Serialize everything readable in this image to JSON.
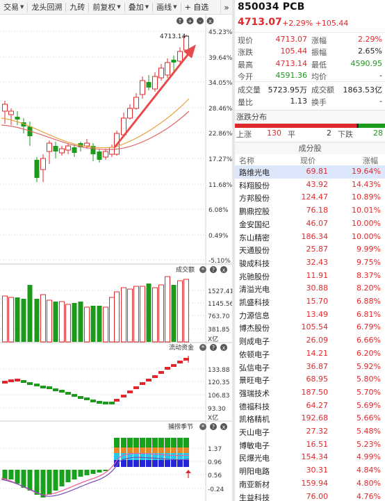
{
  "toolbar": {
    "items": [
      "交易",
      "龙头回溯",
      "九砖",
      "前复权",
      "叠加",
      "画线",
      "+ 自选"
    ],
    "more": "»"
  },
  "main_chart": {
    "y_labels": [
      "45.23%",
      "39.64%",
      "34.05%",
      "28.46%",
      "22.86%",
      "17.27%",
      "11.68%",
      "6.08%",
      "0.49%",
      "-5.10%"
    ],
    "max_price_label": "4713.14"
  },
  "volume_pane": {
    "title": "成交额",
    "y_labels": [
      "1527.41",
      "1145.56",
      "763.70",
      "381.85"
    ],
    "unit": "X亿"
  },
  "flow_pane": {
    "title": "流动资金",
    "y_labels": [
      "133.88",
      "120.35",
      "106.83",
      "93.30"
    ],
    "unit": "X亿"
  },
  "season_pane": {
    "title": "捕捞季节",
    "y_labels": [
      "1.37",
      "0.96",
      "0.56",
      "-0.24"
    ]
  },
  "quote": {
    "code_name": "850034 PCB",
    "price": "4713.07",
    "change": "+2.29% +105.44",
    "rows": [
      [
        {
          "label": "现价",
          "value": "4713.07",
          "color": "red"
        },
        {
          "label": "涨幅",
          "value": "2.29%",
          "color": "red"
        }
      ],
      [
        {
          "label": "涨跌",
          "value": "105.44",
          "color": "red"
        },
        {
          "label": "振幅",
          "value": "2.65%",
          "color": "dark"
        }
      ],
      [
        {
          "label": "最高",
          "value": "4713.14",
          "color": "red"
        },
        {
          "label": "最低",
          "value": "4590.95",
          "color": "green"
        }
      ],
      [
        {
          "label": "今开",
          "value": "4591.36",
          "color": "green"
        },
        {
          "label": "均价",
          "value": "-",
          "color": "dark"
        }
      ],
      [
        {
          "label": "成交量",
          "value": "5723.95万",
          "color": "dark"
        },
        {
          "label": "成交额",
          "value": "1863.53亿",
          "color": "dark"
        }
      ],
      [
        {
          "label": "量比",
          "value": "1.13",
          "color": "dark"
        },
        {
          "label": "换手",
          "value": "-",
          "color": "dark"
        }
      ]
    ]
  },
  "distribution": {
    "title": "涨跌分布",
    "up_label": "上涨",
    "up": "130",
    "flat_label": "平",
    "flat": "2",
    "down_label": "下跌",
    "down": "28",
    "up_count": 130,
    "flat_count": 2,
    "down_count": 28
  },
  "components": {
    "title": "成分股",
    "headers": [
      "名称",
      "现价",
      "涨幅"
    ],
    "rows": [
      [
        "路维光电",
        "69.81",
        "19.64%"
      ],
      [
        "科翔股份",
        "43.92",
        "14.43%"
      ],
      [
        "方邦股份",
        "124.47",
        "10.89%"
      ],
      [
        "鹏鼎控股",
        "76.18",
        "10.01%"
      ],
      [
        "金安国纪",
        "46.07",
        "10.00%"
      ],
      [
        "东山精密",
        "186.34",
        "10.00%"
      ],
      [
        "天通股份",
        "25.87",
        "9.99%"
      ],
      [
        "骏成科技",
        "32.43",
        "9.75%"
      ],
      [
        "兆驰股份",
        "11.91",
        "8.37%"
      ],
      [
        "清溢光电",
        "30.88",
        "8.20%"
      ],
      [
        "凯盛科技",
        "15.70",
        "6.88%"
      ],
      [
        "力源信息",
        "13.49",
        "6.81%"
      ],
      [
        "博杰股份",
        "105.54",
        "6.79%"
      ],
      [
        "则成电子",
        "26.09",
        "6.66%"
      ],
      [
        "依顿电子",
        "14.21",
        "6.20%"
      ],
      [
        "弘信电子",
        "36.87",
        "5.92%"
      ],
      [
        "景旺电子",
        "68.95",
        "5.80%"
      ],
      [
        "强瑞技术",
        "187.50",
        "5.70%"
      ],
      [
        "德福科技",
        "64.27",
        "5.69%"
      ],
      [
        "凯格精机",
        "192.68",
        "5.66%"
      ],
      [
        "天山电子",
        "27.32",
        "5.48%"
      ],
      [
        "博敏电子",
        "16.51",
        "5.23%"
      ],
      [
        "民爆光电",
        "154.34",
        "4.99%"
      ],
      [
        "明阳电路",
        "30.31",
        "4.84%"
      ],
      [
        "南亚新材",
        "159.94",
        "4.80%"
      ],
      [
        "生益科技",
        "76.00",
        "4.76%"
      ]
    ]
  },
  "colors": {
    "up": "#e0282c",
    "down": "#1b9a1b",
    "ma1": "#e8a23c",
    "ma2": "#e36464"
  }
}
